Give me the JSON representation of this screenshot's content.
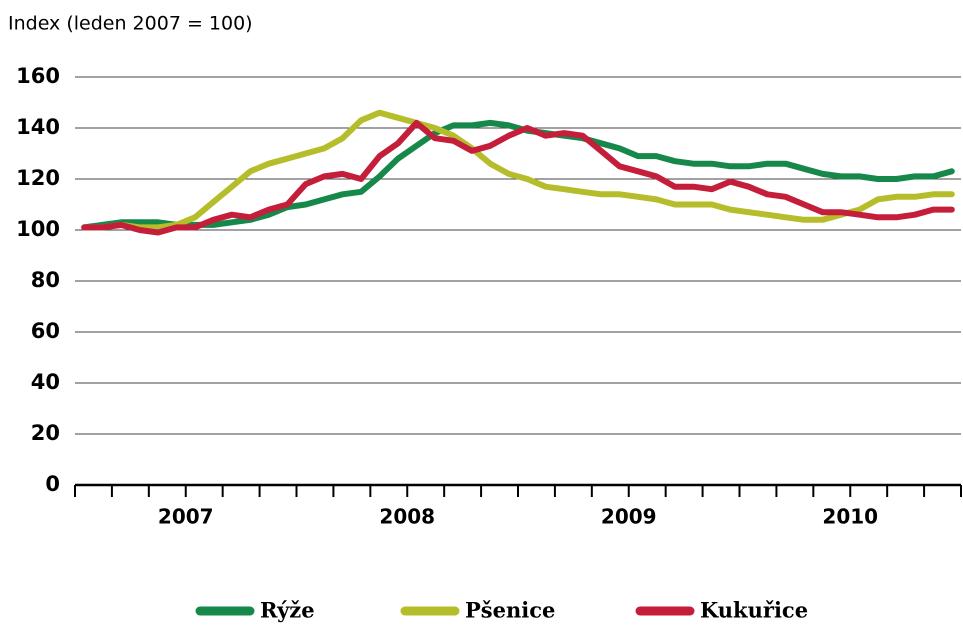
{
  "chart_data": {
    "type": "line",
    "y_axis_label": "Index (leden 2007 = 100)",
    "categories": [
      null,
      null,
      null,
      null,
      null,
      null,
      null,
      null,
      null,
      null,
      null,
      null,
      null,
      null,
      null,
      null,
      null,
      null,
      null,
      null,
      null,
      null,
      null,
      null,
      null,
      null,
      null,
      null,
      null,
      null,
      null,
      null,
      null,
      null,
      null,
      null,
      null,
      null,
      null,
      null,
      null,
      null,
      null,
      null,
      null,
      null,
      null,
      null
    ],
    "year_labels": [
      "2007",
      "2008",
      "2009",
      "2010"
    ],
    "series": [
      {
        "name": "Rýže",
        "color": "#16884a",
        "values": [
          101,
          102,
          103,
          103,
          103,
          102,
          102,
          102,
          103,
          104,
          106,
          109,
          110,
          112,
          114,
          115,
          121,
          128,
          133,
          138,
          141,
          141,
          142,
          141,
          139,
          138,
          137,
          136,
          134,
          132,
          129,
          129,
          127,
          126,
          126,
          125,
          125,
          126,
          126,
          124,
          122,
          121,
          121,
          120,
          120,
          121,
          121,
          123
        ]
      },
      {
        "name": "Pšenice",
        "color": "#b6bd2b",
        "values": [
          101,
          101,
          102,
          101,
          101,
          102,
          105,
          111,
          117,
          123,
          126,
          128,
          130,
          132,
          136,
          143,
          146,
          144,
          142,
          140,
          137,
          132,
          126,
          122,
          120,
          117,
          116,
          115,
          114,
          114,
          113,
          112,
          110,
          110,
          110,
          108,
          107,
          106,
          105,
          104,
          104,
          106,
          108,
          112,
          113,
          113,
          114,
          114
        ]
      },
      {
        "name": "Kukuřice",
        "color": "#c41e3a",
        "values": [
          101,
          101,
          102,
          100,
          99,
          101,
          101,
          104,
          106,
          105,
          108,
          110,
          118,
          121,
          122,
          120,
          129,
          134,
          142,
          136,
          135,
          131,
          133,
          137,
          140,
          137,
          138,
          137,
          131,
          125,
          123,
          121,
          117,
          117,
          116,
          119,
          117,
          114,
          113,
          110,
          107,
          107,
          106,
          105,
          105,
          106,
          108,
          108
        ]
      }
    ],
    "ylim": [
      0,
      160
    ],
    "yticks": [
      0,
      20,
      40,
      60,
      80,
      100,
      120,
      140,
      160
    ],
    "grid": true
  }
}
